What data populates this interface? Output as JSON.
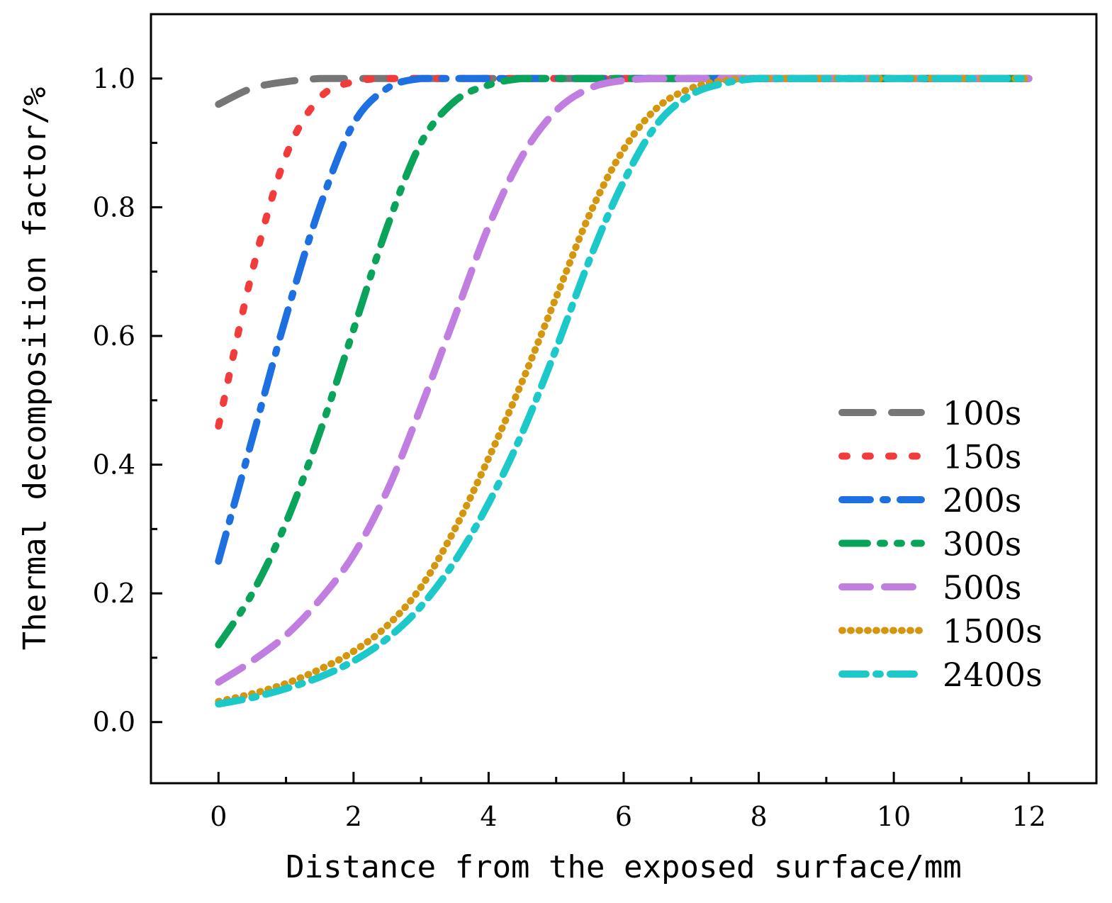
{
  "chart_data": {
    "type": "line",
    "title": "",
    "xlabel": "Distance from the exposed surface/mm",
    "ylabel": "Thermal decomposition factor/%",
    "xlim": [
      -1,
      13
    ],
    "ylim": [
      -0.095,
      1.1
    ],
    "xticks": [
      0,
      2,
      4,
      6,
      8,
      10,
      12
    ],
    "xtick_labels": [
      "0",
      "2",
      "4",
      "6",
      "8",
      "10",
      "12"
    ],
    "xminor": [
      1,
      3,
      5,
      7,
      9,
      11
    ],
    "yticks": [
      0.0,
      0.2,
      0.4,
      0.6,
      0.8,
      1.0
    ],
    "ytick_labels": [
      "0.0",
      "0.2",
      "0.4",
      "0.6",
      "0.8",
      "1.0"
    ],
    "yminor": [
      0.1,
      0.3,
      0.5,
      0.7,
      0.9
    ],
    "grid": false,
    "legend_position": "right",
    "x": [
      0,
      0.5,
      1,
      1.5,
      2,
      2.5,
      3,
      3.5,
      4,
      4.5,
      5,
      5.5,
      6,
      6.5,
      7,
      7.5,
      8,
      8.5,
      9,
      9.5,
      10,
      10.5,
      11,
      11.5,
      12
    ],
    "series": [
      {
        "name": "100s",
        "color": "#767676",
        "dash": "44,26",
        "values": [
          0.96,
          0.985,
          0.995,
          1.0,
          1.0,
          1.0,
          1.0,
          1.0,
          1.0,
          1.0,
          1.0,
          1.0,
          1.0,
          1.0,
          1.0,
          1.0,
          1.0,
          1.0,
          1.0,
          1.0,
          1.0,
          1.0,
          1.0,
          1.0,
          1.0
        ]
      },
      {
        "name": "150s",
        "color": "#f23c3c",
        "dash": "7,26",
        "values": [
          0.46,
          0.7,
          0.88,
          0.97,
          0.995,
          1.0,
          1.0,
          1.0,
          1.0,
          1.0,
          1.0,
          1.0,
          1.0,
          1.0,
          1.0,
          1.0,
          1.0,
          1.0,
          1.0,
          1.0,
          1.0,
          1.0,
          1.0,
          1.0,
          1.0
        ]
      },
      {
        "name": "200s",
        "color": "#1e6fe0",
        "dash": "40,18,6,18",
        "values": [
          0.25,
          0.44,
          0.63,
          0.8,
          0.93,
          0.985,
          1.0,
          1.0,
          1.0,
          1.0,
          1.0,
          1.0,
          1.0,
          1.0,
          1.0,
          1.0,
          1.0,
          1.0,
          1.0,
          1.0,
          1.0,
          1.0,
          1.0,
          1.0,
          1.0
        ]
      },
      {
        "name": "300s",
        "color": "#0aa35a",
        "dash": "36,18,6,18,6,18",
        "values": [
          0.12,
          0.2,
          0.31,
          0.45,
          0.61,
          0.77,
          0.9,
          0.965,
          0.99,
          1.0,
          1.0,
          1.0,
          1.0,
          1.0,
          1.0,
          1.0,
          1.0,
          1.0,
          1.0,
          1.0,
          1.0,
          1.0,
          1.0,
          1.0,
          1.0
        ]
      },
      {
        "name": "500s",
        "color": "#c07ee0",
        "dash": "40,20",
        "values": [
          0.062,
          0.095,
          0.135,
          0.19,
          0.26,
          0.36,
          0.49,
          0.63,
          0.77,
          0.88,
          0.95,
          0.985,
          0.997,
          1.0,
          1.0,
          1.0,
          1.0,
          1.0,
          1.0,
          1.0,
          1.0,
          1.0,
          1.0,
          1.0,
          1.0
        ]
      },
      {
        "name": "1500s",
        "color": "#d4960e",
        "dash": "1,11",
        "values": [
          0.032,
          0.044,
          0.06,
          0.082,
          0.11,
          0.15,
          0.21,
          0.3,
          0.41,
          0.53,
          0.66,
          0.79,
          0.89,
          0.955,
          0.985,
          0.997,
          1.0,
          1.0,
          1.0,
          1.0,
          1.0,
          1.0,
          1.0,
          1.0,
          1.0
        ]
      },
      {
        "name": "2400s",
        "color": "#1cc8c8",
        "dash": "34,14,6,14",
        "values": [
          0.028,
          0.038,
          0.052,
          0.07,
          0.095,
          0.13,
          0.18,
          0.25,
          0.34,
          0.45,
          0.58,
          0.72,
          0.84,
          0.93,
          0.975,
          0.993,
          1.0,
          1.0,
          1.0,
          1.0,
          1.0,
          1.0,
          1.0,
          1.0,
          1.0
        ]
      }
    ]
  }
}
